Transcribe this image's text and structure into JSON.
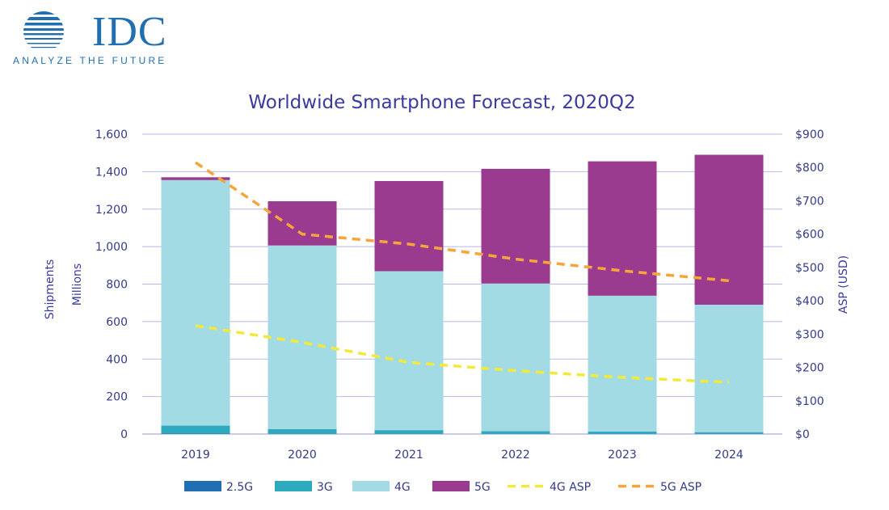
{
  "logo": {
    "word": "IDC",
    "tagline": "ANALYZE THE FUTURE"
  },
  "colors": {
    "s2_5g": "#1f6fb2",
    "s3g": "#2eaabf",
    "s4g": "#a3dbe5",
    "s5g": "#9b3b8f",
    "asp4g": "#f2ea3a",
    "asp5g": "#f5a53a",
    "grid": "#b8b8e8",
    "text": "#333a8a"
  },
  "chart_data": {
    "type": "bar",
    "title": "Worldwide Smartphone Forecast, 2020Q2",
    "categories": [
      "2019",
      "2020",
      "2021",
      "2022",
      "2023",
      "2024"
    ],
    "ylabel_left": [
      "Shipments",
      "Millions"
    ],
    "ylabel_right": "ASP (USD)",
    "ylim_left": [
      0,
      1600
    ],
    "ylim_right": [
      0,
      900
    ],
    "left_ticks": [
      "0",
      "200",
      "400",
      "600",
      "800",
      "1,000",
      "1,200",
      "1,400",
      "1,600"
    ],
    "right_ticks": [
      "$0",
      "$100",
      "$200",
      "$300",
      "$400",
      "$500",
      "$600",
      "$700",
      "$800",
      "$900"
    ],
    "series": [
      {
        "name": "2.5G",
        "kind": "stacked_bar",
        "values": [
          2,
          1,
          1,
          1,
          1,
          1
        ]
      },
      {
        "name": "3G",
        "kind": "stacked_bar",
        "values": [
          43,
          25,
          20,
          14,
          12,
          9
        ]
      },
      {
        "name": "4G",
        "kind": "stacked_bar",
        "values": [
          1310,
          980,
          848,
          788,
          725,
          680
        ]
      },
      {
        "name": "5G",
        "kind": "stacked_bar",
        "values": [
          15,
          236,
          481,
          612,
          717,
          800
        ]
      },
      {
        "name": "4G ASP",
        "kind": "line",
        "axis": "right",
        "values": [
          325,
          275,
          215,
          190,
          170,
          155
        ]
      },
      {
        "name": "5G ASP",
        "kind": "line",
        "axis": "right",
        "values": [
          815,
          600,
          570,
          525,
          490,
          460
        ]
      }
    ],
    "legend_position": "bottom"
  }
}
